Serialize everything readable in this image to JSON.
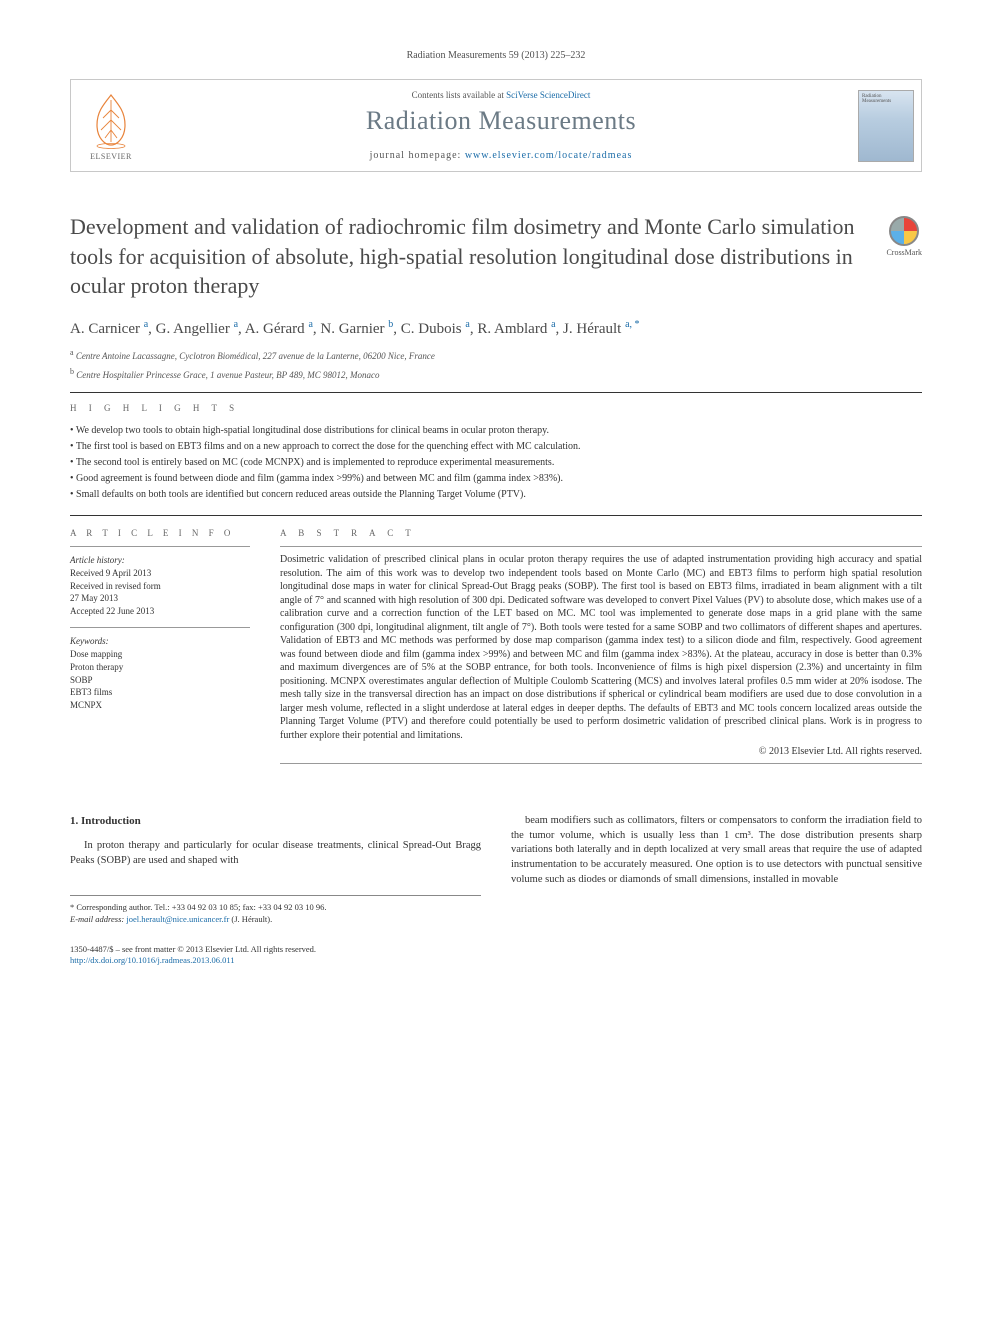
{
  "topRef": "Radiation Measurements 59 (2013) 225–232",
  "header": {
    "contentsPrefix": "Contents lists available at ",
    "contentsLink": "SciVerse ScienceDirect",
    "journalName": "Radiation Measurements",
    "homepagePrefix": "journal homepage: ",
    "homepageUrl": "www.elsevier.com/locate/radmeas",
    "elsevierLabel": "ELSEVIER",
    "coverLabel": "Radiation Measurements"
  },
  "crossmarkLabel": "CrossMark",
  "title": "Development and validation of radiochromic film dosimetry and Monte Carlo simulation tools for acquisition of absolute, high-spatial resolution longitudinal dose distributions in ocular proton therapy",
  "authorsHtml": "A. Carnicer <sup>a</sup>, G. Angellier <sup>a</sup>, A. Gérard <sup>a</sup>, N. Garnier <sup>b</sup>, C. Dubois <sup>a</sup>, R. Amblard <sup>a</sup>, J. Hérault <sup>a, *</sup>",
  "affiliations": [
    "a Centre Antoine Lacassagne, Cyclotron Biomédical, 227 avenue de la Lanterne, 06200 Nice, France",
    "b Centre Hospitalier Princesse Grace, 1 avenue Pasteur, BP 489, MC 98012, Monaco"
  ],
  "highlightsHead": "H I G H L I G H T S",
  "highlights": [
    "We develop two tools to obtain high-spatial longitudinal dose distributions for clinical beams in ocular proton therapy.",
    "The first tool is based on EBT3 films and on a new approach to correct the dose for the quenching effect with MC calculation.",
    "The second tool is entirely based on MC (code MCNPX) and is implemented to reproduce experimental measurements.",
    "Good agreement is found between diode and film (gamma index >99%) and between MC and film (gamma index >83%).",
    "Small defaults on both tools are identified but concern reduced areas outside the Planning Target Volume (PTV)."
  ],
  "infoHead": "A R T I C L E   I N F O",
  "history": {
    "head": "Article history:",
    "received": "Received 9 April 2013",
    "revised1": "Received in revised form",
    "revised2": "27 May 2013",
    "accepted": "Accepted 22 June 2013"
  },
  "keywordsHead": "Keywords:",
  "keywords": [
    "Dose mapping",
    "Proton therapy",
    "SOBP",
    "EBT3 films",
    "MCNPX"
  ],
  "abstractHead": "A B S T R A C T",
  "abstract": "Dosimetric validation of prescribed clinical plans in ocular proton therapy requires the use of adapted instrumentation providing high accuracy and spatial resolution. The aim of this work was to develop two independent tools based on Monte Carlo (MC) and EBT3 films to perform high spatial resolution longitudinal dose maps in water for clinical Spread-Out Bragg peaks (SOBP). The first tool is based on EBT3 films, irradiated in beam alignment with a tilt angle of 7° and scanned with high resolution of 300 dpi. Dedicated software was developed to convert Pixel Values (PV) to absolute dose, which makes use of a calibration curve and a correction function of the LET based on MC. MC tool was implemented to generate dose maps in a grid plane with the same configuration (300 dpi, longitudinal alignment, tilt angle of 7°). Both tools were tested for a same SOBP and two collimators of different shapes and apertures. Validation of EBT3 and MC methods was performed by dose map comparison (gamma index test) to a silicon diode and film, respectively. Good agreement was found between diode and film (gamma index >99%) and between MC and film (gamma index >83%). At the plateau, accuracy in dose is better than 0.3% and maximum divergences are of 5% at the SOBP entrance, for both tools. Inconvenience of films is high pixel dispersion (2.3%) and uncertainty in film positioning. MCNPX overestimates angular deflection of Multiple Coulomb Scattering (MCS) and involves lateral profiles 0.5 mm wider at 20% isodose. The mesh tally size in the transversal direction has an impact on dose distributions if spherical or cylindrical beam modifiers are used due to dose convolution in a larger mesh volume, reflected in a slight underdose at lateral edges in deeper depths. The defaults of EBT3 and MC tools concern localized areas outside the Planning Target Volume (PTV) and therefore could potentially be used to perform dosimetric validation of prescribed clinical plans. Work is in progress to further explore their potential and limitations.",
  "copyright": "© 2013 Elsevier Ltd. All rights reserved.",
  "section1Head": "1. Introduction",
  "introLeft": "In proton therapy and particularly for ocular disease treatments, clinical Spread-Out Bragg Peaks (SOBP) are used and shaped with",
  "introRight": "beam modifiers such as collimators, filters or compensators to conform the irradiation field to the tumor volume, which is usually less than 1 cm³. The dose distribution presents sharp variations both laterally and in depth localized at very small areas that require the use of adapted instrumentation to be accurately measured. One option is to use detectors with punctual sensitive volume such as diodes or diamonds of small dimensions, installed in movable",
  "corresp": {
    "star": "* Corresponding author. Tel.: +33 04 92 03 10 85; fax: +33 04 92 03 10 96.",
    "emailLabel": "E-mail address: ",
    "email": "joel.herault@nice.unicancer.fr",
    "emailSuffix": " (J. Hérault)."
  },
  "footer": {
    "line1": "1350-4487/$ – see front matter © 2013 Elsevier Ltd. All rights reserved.",
    "doi": "http://dx.doi.org/10.1016/j.radmeas.2013.06.011"
  }
}
